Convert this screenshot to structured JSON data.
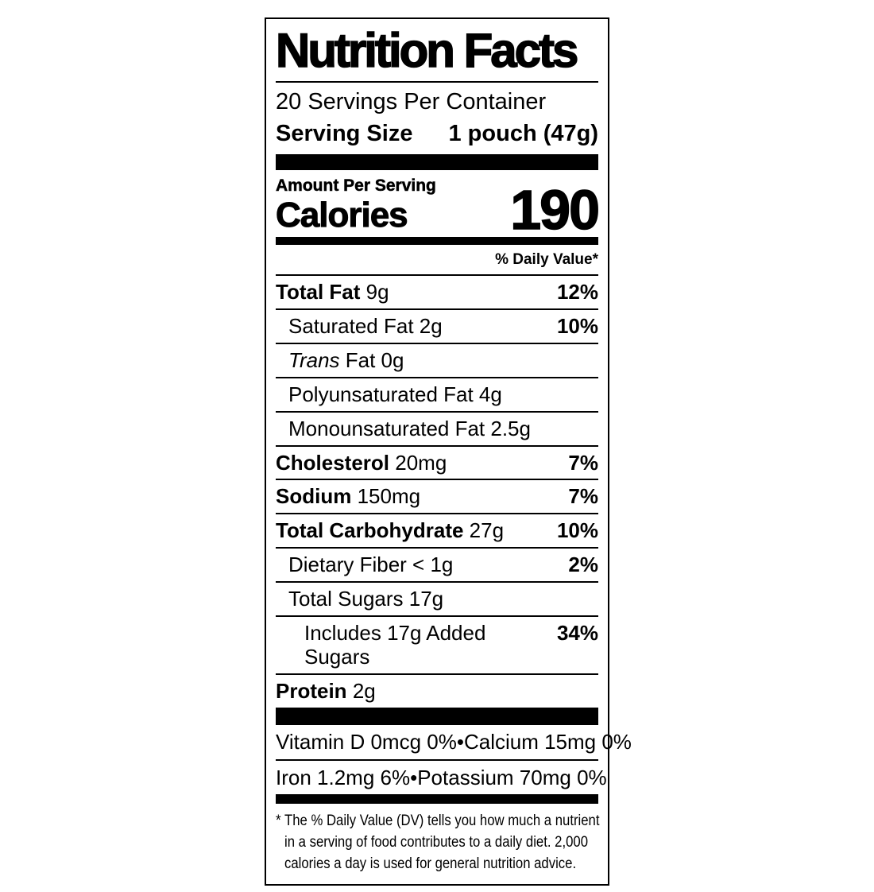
{
  "label": {
    "title": "Nutrition Facts",
    "servings_per_container": "20 Servings Per Container",
    "serving_size": {
      "label": "Serving Size",
      "value": "1 pouch (47g)"
    },
    "amount_per_serving": "Amount Per Serving",
    "calories": {
      "label": "Calories",
      "value": "190"
    },
    "daily_value_header": "% Daily Value*",
    "nutrients": [
      {
        "bold": "Total Fat",
        "italic": "",
        "plain": "9g",
        "dv": "12%",
        "indent": 0
      },
      {
        "bold": "",
        "italic": "",
        "plain": "Saturated Fat 2g",
        "dv": "10%",
        "indent": 1
      },
      {
        "bold": "",
        "italic": "Trans",
        "plain": "Fat 0g",
        "dv": "",
        "indent": 1
      },
      {
        "bold": "",
        "italic": "",
        "plain": "Polyunsaturated Fat 4g",
        "dv": "",
        "indent": 1
      },
      {
        "bold": "",
        "italic": "",
        "plain": "Monounsaturated Fat 2.5g",
        "dv": "",
        "indent": 1
      },
      {
        "bold": "Cholesterol",
        "italic": "",
        "plain": "20mg",
        "dv": "7%",
        "indent": 0
      },
      {
        "bold": "Sodium",
        "italic": "",
        "plain": "150mg",
        "dv": "7%",
        "indent": 0
      },
      {
        "bold": "Total Carbohydrate",
        "italic": "",
        "plain": "27g",
        "dv": "10%",
        "indent": 0
      },
      {
        "bold": "",
        "italic": "",
        "plain": "Dietary Fiber < 1g",
        "dv": "2%",
        "indent": 1
      },
      {
        "bold": "",
        "italic": "",
        "plain": "Total Sugars 17g",
        "dv": "",
        "indent": 1
      },
      {
        "bold": "",
        "italic": "",
        "plain": "Includes 17g Added Sugars",
        "dv": "34%",
        "indent": 2
      },
      {
        "bold": "Protein",
        "italic": "",
        "plain": "2g",
        "dv": "",
        "indent": 0
      }
    ],
    "micronutrients": [
      {
        "left": "Vitamin D 0mcg 0%",
        "bullet": "•",
        "right": "Calcium 15mg 0%"
      },
      {
        "left": "Iron 1.2mg 6%",
        "bullet": "•",
        "right": "Potassium 70mg 0%"
      }
    ],
    "footnote": {
      "marker": "*",
      "lines": [
        "The % Daily Value (DV) tells you how much a nutrient",
        "in a serving of food contributes to a daily diet. 2,000",
        "calories a day is used for general nutrition advice."
      ]
    },
    "colors": {
      "ink": "#000000",
      "background": "#ffffff"
    }
  }
}
